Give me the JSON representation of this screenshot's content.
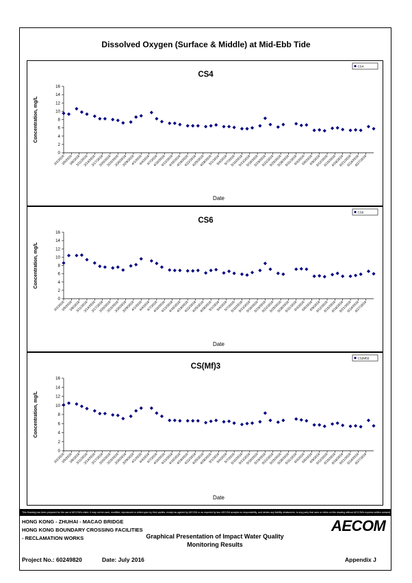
{
  "main_title": "Dissolved Oxygen (Surface & Middle) at Mid-Ebb Tide",
  "footer": {
    "disclaimer": "This Drawing has been prepared for the use of AECOM's client. It may not be used, modified, reproduced or relied upon by third parties, except as agreed by AECOM or as required by law. AECOM accepts no responsibility, and denies any liability whatsoever, to any party that uses or relies on this drawing without AECOM's express written consent.",
    "line1": "HONG KONG - ZHUHAI - MACAO BRIDGE",
    "line2": "HONG KONG BOUNDARY CROSSING FACILITIES",
    "line3": "- RECLAMATION WORKS",
    "title_line1": "Graphical Presentation of Impact Water Quality",
    "title_line2": "Monitoring Results",
    "project": "Project No.: 60249820",
    "date": "Date: July 2016",
    "appendix": "Appendix J",
    "logo": "AECOM"
  },
  "colors": {
    "marker": "#000080",
    "frame": "#000000"
  },
  "chart_data": [
    {
      "type": "scatter",
      "title": "CS4",
      "xlabel": "Date",
      "ylabel": "Concentration, mg/L",
      "ylim": [
        0,
        16
      ],
      "yticks": [
        0,
        2,
        4,
        6,
        8,
        10,
        12,
        14,
        16
      ],
      "legend_position": "top-right",
      "x_tick_labels": [
        "3/2/2016",
        "3/5/2016",
        "3/8/2016",
        "3/11/2016",
        "3/14/2016",
        "3/17/2016",
        "3/20/2016",
        "3/23/2016",
        "3/26/2016",
        "3/29/2016",
        "4/1/2016",
        "4/4/2016",
        "4/7/2016",
        "4/10/2016",
        "4/13/2016",
        "4/16/2016",
        "4/19/2016",
        "4/22/2016",
        "4/25/2016",
        "4/28/2016",
        "5/1/2016",
        "5/4/2016",
        "5/7/2016",
        "5/10/2016",
        "5/13/2016",
        "5/16/2016",
        "5/19/2016",
        "5/22/2016",
        "5/25/2016",
        "5/28/2016",
        "5/31/2016",
        "6/3/2016",
        "6/6/2016",
        "6/9/2016",
        "6/12/2016",
        "6/15/2016",
        "6/18/2016",
        "6/21/2016",
        "6/24/2016",
        "6/27/2016"
      ],
      "series": [
        {
          "name": "CS4",
          "x": [
            "3/2/2016",
            "3/4/2016",
            "3/7/2016",
            "3/9/2016",
            "3/11/2016",
            "3/14/2016",
            "3/16/2016",
            "3/18/2016",
            "3/21/2016",
            "3/23/2016",
            "3/25/2016",
            "3/28/2016",
            "3/30/2016",
            "4/1/2016",
            "4/5/2016",
            "4/7/2016",
            "4/9/2016",
            "4/12/2016",
            "4/14/2016",
            "4/16/2016",
            "4/19/2016",
            "4/21/2016",
            "4/23/2016",
            "4/26/2016",
            "4/28/2016",
            "4/30/2016",
            "5/3/2016",
            "5/5/2016",
            "5/7/2016",
            "5/10/2016",
            "5/12/2016",
            "5/14/2016",
            "5/17/2016",
            "5/19/2016",
            "5/21/2016",
            "5/24/2016",
            "5/26/2016",
            "5/31/2016",
            "6/2/2016",
            "6/4/2016",
            "6/7/2016",
            "6/9/2016",
            "6/11/2016",
            "6/14/2016",
            "6/16/2016",
            "6/18/2016",
            "6/21/2016",
            "6/23/2016",
            "6/25/2016",
            "6/28/2016",
            "6/30/2016"
          ],
          "values": [
            9.5,
            9.3,
            10.6,
            9.8,
            9.3,
            8.8,
            8.2,
            8.2,
            8.0,
            7.8,
            7.2,
            7.4,
            8.6,
            8.9,
            9.7,
            8.2,
            7.5,
            7.1,
            7.1,
            6.8,
            6.5,
            6.5,
            6.5,
            6.3,
            6.5,
            6.7,
            6.3,
            6.3,
            6.1,
            5.8,
            5.8,
            6.0,
            6.5,
            8.3,
            6.8,
            6.2,
            6.8,
            7.0,
            6.6,
            6.7,
            5.4,
            5.5,
            5.3,
            5.9,
            6.0,
            5.6,
            5.4,
            5.5,
            5.4,
            6.3,
            5.8
          ]
        }
      ]
    },
    {
      "type": "scatter",
      "title": "CS6",
      "xlabel": "Date",
      "ylabel": "Concentration, mg/L",
      "ylim": [
        0,
        16
      ],
      "yticks": [
        0,
        2,
        4,
        6,
        8,
        10,
        12,
        14,
        16
      ],
      "legend_position": "top-right",
      "x_tick_labels": [
        "3/2/2016",
        "3/5/2016",
        "3/8/2016",
        "3/11/2016",
        "3/14/2016",
        "3/17/2016",
        "3/20/2016",
        "3/23/2016",
        "3/26/2016",
        "3/29/2016",
        "4/1/2016",
        "4/4/2016",
        "4/7/2016",
        "4/10/2016",
        "4/13/2016",
        "4/16/2016",
        "4/19/2016",
        "4/22/2016",
        "4/25/2016",
        "4/28/2016",
        "5/1/2016",
        "5/4/2016",
        "5/7/2016",
        "5/10/2016",
        "5/13/2016",
        "5/16/2016",
        "5/19/2016",
        "5/22/2016",
        "5/25/2016",
        "5/28/2016",
        "5/31/2016",
        "6/3/2016",
        "6/6/2016",
        "6/9/2016",
        "6/12/2016",
        "6/15/2016",
        "6/18/2016",
        "6/21/2016",
        "6/24/2016",
        "6/27/2016"
      ],
      "series": [
        {
          "name": "CS6",
          "x": [
            "3/2/2016",
            "3/4/2016",
            "3/7/2016",
            "3/9/2016",
            "3/11/2016",
            "3/14/2016",
            "3/16/2016",
            "3/18/2016",
            "3/21/2016",
            "3/23/2016",
            "3/25/2016",
            "3/28/2016",
            "3/30/2016",
            "4/1/2016",
            "4/5/2016",
            "4/7/2016",
            "4/9/2016",
            "4/12/2016",
            "4/14/2016",
            "4/16/2016",
            "4/19/2016",
            "4/21/2016",
            "4/23/2016",
            "4/26/2016",
            "4/28/2016",
            "4/30/2016",
            "5/3/2016",
            "5/5/2016",
            "5/7/2016",
            "5/10/2016",
            "5/12/2016",
            "5/14/2016",
            "5/17/2016",
            "5/19/2016",
            "5/21/2016",
            "5/24/2016",
            "5/26/2016",
            "5/31/2016",
            "6/2/2016",
            "6/4/2016",
            "6/7/2016",
            "6/9/2016",
            "6/11/2016",
            "6/14/2016",
            "6/16/2016",
            "6/18/2016",
            "6/21/2016",
            "6/23/2016",
            "6/25/2016",
            "6/28/2016",
            "6/30/2016"
          ],
          "values": [
            8.6,
            10.4,
            10.4,
            10.5,
            9.4,
            8.6,
            7.8,
            7.6,
            7.4,
            7.6,
            6.9,
            7.9,
            8.2,
            9.6,
            9.1,
            8.5,
            7.6,
            6.9,
            6.8,
            6.8,
            6.7,
            6.7,
            6.8,
            6.2,
            6.8,
            7.0,
            6.2,
            6.6,
            6.1,
            5.9,
            5.7,
            6.3,
            6.8,
            8.5,
            7.1,
            6.1,
            5.9,
            7.1,
            7.2,
            7.1,
            5.4,
            5.5,
            5.3,
            5.8,
            6.1,
            5.4,
            5.4,
            5.6,
            5.9,
            6.6,
            6.0
          ]
        }
      ]
    },
    {
      "type": "scatter",
      "title": "CS(Mf)3",
      "xlabel": "Date",
      "ylabel": "Concentration, mg/L",
      "ylim": [
        0,
        16
      ],
      "yticks": [
        0,
        2,
        4,
        6,
        8,
        10,
        12,
        14,
        16
      ],
      "legend_position": "top-right",
      "x_tick_labels": [
        "3/2/2016",
        "3/5/2016",
        "3/8/2016",
        "3/11/2016",
        "3/14/2016",
        "3/17/2016",
        "3/20/2016",
        "3/23/2016",
        "3/26/2016",
        "3/29/2016",
        "4/1/2016",
        "4/4/2016",
        "4/7/2016",
        "4/10/2016",
        "4/13/2016",
        "4/16/2016",
        "4/19/2016",
        "4/22/2016",
        "4/25/2016",
        "4/28/2016",
        "5/1/2016",
        "5/4/2016",
        "5/7/2016",
        "5/10/2016",
        "5/13/2016",
        "5/16/2016",
        "5/19/2016",
        "5/22/2016",
        "5/25/2016",
        "5/28/2016",
        "5/31/2016",
        "6/3/2016",
        "6/6/2016",
        "6/9/2016",
        "6/12/2016",
        "6/15/2016",
        "6/18/2016",
        "6/21/2016",
        "6/24/2016",
        "6/27/2016"
      ],
      "series": [
        {
          "name": "CS(Mf)3",
          "x": [
            "3/2/2016",
            "3/4/2016",
            "3/7/2016",
            "3/9/2016",
            "3/11/2016",
            "3/14/2016",
            "3/16/2016",
            "3/18/2016",
            "3/21/2016",
            "3/23/2016",
            "3/25/2016",
            "3/28/2016",
            "3/30/2016",
            "4/1/2016",
            "4/5/2016",
            "4/7/2016",
            "4/9/2016",
            "4/12/2016",
            "4/14/2016",
            "4/16/2016",
            "4/19/2016",
            "4/21/2016",
            "4/23/2016",
            "4/26/2016",
            "4/28/2016",
            "4/30/2016",
            "5/3/2016",
            "5/5/2016",
            "5/7/2016",
            "5/10/2016",
            "5/12/2016",
            "5/14/2016",
            "5/17/2016",
            "5/19/2016",
            "5/21/2016",
            "5/24/2016",
            "5/26/2016",
            "5/31/2016",
            "6/2/2016",
            "6/4/2016",
            "6/7/2016",
            "6/9/2016",
            "6/11/2016",
            "6/14/2016",
            "6/16/2016",
            "6/18/2016",
            "6/21/2016",
            "6/23/2016",
            "6/25/2016",
            "6/28/2016",
            "6/30/2016"
          ],
          "values": [
            10.1,
            10.5,
            10.3,
            9.8,
            9.3,
            8.8,
            8.2,
            8.2,
            7.9,
            7.8,
            7.1,
            7.6,
            8.8,
            9.4,
            9.4,
            8.3,
            7.6,
            6.7,
            6.7,
            6.6,
            6.6,
            6.6,
            6.6,
            6.2,
            6.5,
            6.7,
            6.4,
            6.5,
            6.1,
            5.8,
            6.0,
            6.1,
            6.4,
            8.3,
            6.7,
            6.3,
            6.7,
            7.0,
            6.8,
            6.6,
            5.7,
            5.7,
            5.4,
            5.9,
            6.1,
            5.6,
            5.4,
            5.5,
            5.3,
            6.7,
            5.5
          ]
        }
      ]
    }
  ]
}
